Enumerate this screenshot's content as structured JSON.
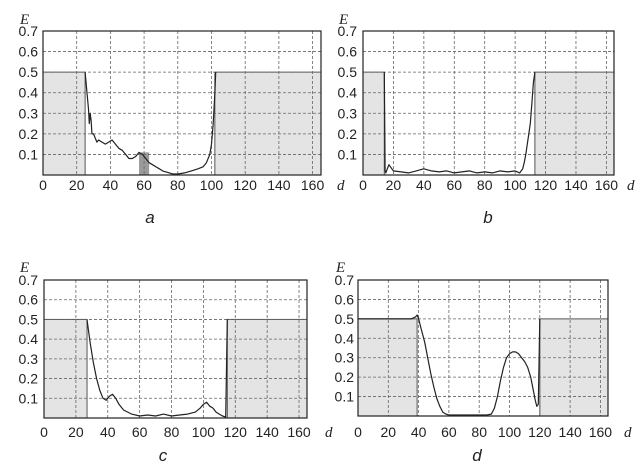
{
  "chart_data": [
    {
      "type": "line",
      "caption": "a",
      "xlabel": "d",
      "ylabel": "E",
      "xlim": [
        0,
        165
      ],
      "ylim": [
        0,
        0.7
      ],
      "xticks": [
        "0",
        "20",
        "40",
        "60",
        "80",
        "100",
        "120",
        "140",
        "160"
      ],
      "yticks": [
        "0.1",
        "0.2",
        "0.3",
        "0.4",
        "0.5",
        "0.6",
        "0.7"
      ],
      "grid": true,
      "shaded_regions": [
        {
          "x": [
            0,
            25
          ],
          "y": 0.5
        },
        {
          "x": [
            102,
            165
          ],
          "y": 0.5
        },
        {
          "x": [
            57,
            63
          ],
          "y": 0.11,
          "dark": true
        }
      ],
      "series": [
        {
          "x": [
            25,
            27,
            27.5,
            28,
            28.6,
            29,
            30,
            31,
            32,
            33,
            35,
            37,
            39,
            41,
            43,
            45,
            47,
            49,
            51,
            53,
            55,
            57,
            59,
            61,
            63,
            65,
            67,
            69,
            71,
            73,
            75,
            77,
            80,
            84,
            88,
            92,
            95,
            97,
            99,
            100,
            101,
            102,
            102.5
          ],
          "y": [
            0.5,
            0.32,
            0.25,
            0.3,
            0.26,
            0.2,
            0.2,
            0.18,
            0.16,
            0.17,
            0.16,
            0.15,
            0.16,
            0.17,
            0.15,
            0.13,
            0.12,
            0.1,
            0.08,
            0.08,
            0.09,
            0.11,
            0.1,
            0.08,
            0.06,
            0.05,
            0.04,
            0.03,
            0.02,
            0.015,
            0.01,
            0.005,
            0.005,
            0.01,
            0.02,
            0.03,
            0.04,
            0.06,
            0.1,
            0.15,
            0.25,
            0.4,
            0.5
          ]
        }
      ]
    },
    {
      "type": "line",
      "caption": "b",
      "xlabel": "d",
      "ylabel": "E",
      "xlim": [
        0,
        165
      ],
      "ylim": [
        0,
        0.7
      ],
      "xticks": [
        "0",
        "20",
        "40",
        "60",
        "80",
        "100",
        "120",
        "140",
        "160"
      ],
      "yticks": [
        "0.1",
        "0.2",
        "0.3",
        "0.4",
        "0.5",
        "0.6",
        "0.7"
      ],
      "grid": true,
      "shaded_regions": [
        {
          "x": [
            0,
            14
          ],
          "y": 0.5
        },
        {
          "x": [
            113,
            165
          ],
          "y": 0.5
        }
      ],
      "series": [
        {
          "x": [
            14,
            14.5,
            15,
            16,
            17,
            18,
            20,
            25,
            30,
            35,
            40,
            45,
            50,
            55,
            60,
            65,
            70,
            75,
            80,
            85,
            90,
            95,
            100,
            103,
            105,
            106,
            107,
            108,
            109,
            110,
            111,
            112,
            113
          ],
          "y": [
            0.5,
            0.02,
            0.01,
            0.03,
            0.05,
            0.04,
            0.02,
            0.015,
            0.01,
            0.02,
            0.03,
            0.02,
            0.015,
            0.02,
            0.01,
            0.015,
            0.02,
            0.01,
            0.015,
            0.01,
            0.02,
            0.015,
            0.02,
            0.01,
            0.03,
            0.06,
            0.1,
            0.15,
            0.2,
            0.25,
            0.35,
            0.45,
            0.5
          ]
        }
      ]
    },
    {
      "type": "line",
      "caption": "c",
      "xlabel": "d",
      "ylabel": "E",
      "xlim": [
        0,
        165
      ],
      "ylim": [
        0,
        0.7
      ],
      "xticks": [
        "0",
        "20",
        "40",
        "60",
        "80",
        "100",
        "120",
        "140",
        "160"
      ],
      "yticks": [
        "0.1",
        "0.2",
        "0.3",
        "0.4",
        "0.5",
        "0.6",
        "0.7"
      ],
      "grid": true,
      "shaded_regions": [
        {
          "x": [
            0,
            27
          ],
          "y": 0.5
        },
        {
          "x": [
            115,
            165
          ],
          "y": 0.5
        }
      ],
      "series": [
        {
          "x": [
            27,
            29,
            31,
            33,
            35,
            37,
            39,
            41,
            43,
            45,
            47,
            50,
            55,
            60,
            65,
            70,
            75,
            80,
            85,
            90,
            95,
            98,
            100,
            102,
            104,
            106,
            108,
            110,
            112,
            114,
            115
          ],
          "y": [
            0.5,
            0.38,
            0.28,
            0.2,
            0.14,
            0.1,
            0.09,
            0.11,
            0.12,
            0.1,
            0.07,
            0.04,
            0.02,
            0.01,
            0.015,
            0.01,
            0.02,
            0.01,
            0.015,
            0.02,
            0.03,
            0.05,
            0.07,
            0.08,
            0.06,
            0.05,
            0.03,
            0.02,
            0.01,
            0.005,
            0.5
          ]
        }
      ]
    },
    {
      "type": "line",
      "caption": "d",
      "xlabel": "d",
      "ylabel": "E",
      "xlim": [
        0,
        165
      ],
      "ylim": [
        0,
        0.7
      ],
      "xticks": [
        "0",
        "20",
        "40",
        "60",
        "80",
        "100",
        "120",
        "140",
        "160"
      ],
      "yticks": [
        "0.1",
        "0.2",
        "0.3",
        "0.4",
        "0.5",
        "0.6",
        "0.7"
      ],
      "grid": true,
      "shaded_regions": [
        {
          "x": [
            0,
            39
          ],
          "y": 0.5
        },
        {
          "x": [
            120,
            165
          ],
          "y": 0.5
        }
      ],
      "series": [
        {
          "x": [
            0,
            30,
            35,
            38,
            39,
            40,
            42,
            44,
            46,
            48,
            50,
            52,
            54,
            56,
            58,
            60,
            65,
            70,
            75,
            80,
            85,
            88,
            90,
            92,
            94,
            96,
            98,
            100,
            102,
            104,
            106,
            108,
            110,
            112,
            114,
            116,
            117,
            118,
            119,
            120
          ],
          "y": [
            0.5,
            0.5,
            0.5,
            0.51,
            0.52,
            0.5,
            0.44,
            0.38,
            0.3,
            0.22,
            0.15,
            0.09,
            0.05,
            0.02,
            0.01,
            0.005,
            0.005,
            0.005,
            0.005,
            0.005,
            0.005,
            0.01,
            0.04,
            0.1,
            0.18,
            0.25,
            0.3,
            0.32,
            0.33,
            0.33,
            0.32,
            0.3,
            0.28,
            0.25,
            0.2,
            0.12,
            0.08,
            0.05,
            0.06,
            0.5
          ]
        }
      ]
    }
  ]
}
